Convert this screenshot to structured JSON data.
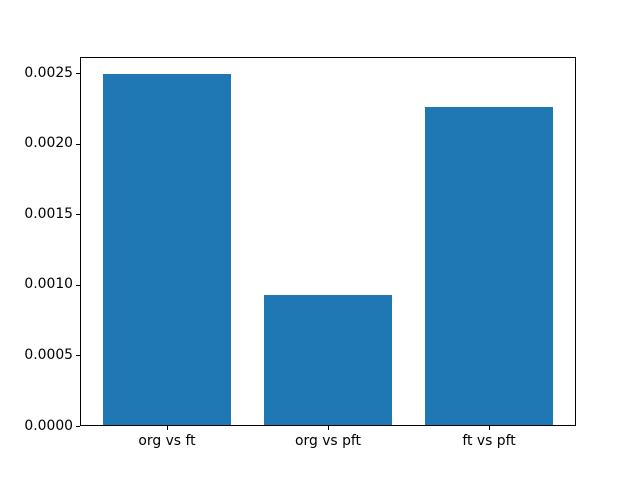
{
  "figure": {
    "background": "#ffffff",
    "title": ""
  },
  "chart_data": {
    "type": "bar",
    "title": "",
    "xlabel": "",
    "ylabel": "",
    "categories": [
      "org vs ft",
      "org vs pft",
      "ft vs pft"
    ],
    "values": [
      0.00249,
      0.00093,
      0.00226
    ],
    "bar_color": "#1f77b4",
    "bar_width": 0.8,
    "xlim": [
      -0.54,
      2.54
    ],
    "ylim": [
      0,
      0.00261
    ],
    "yticks": [
      {
        "value": 0.0,
        "label": "0.0000"
      },
      {
        "value": 0.0005,
        "label": "0.0005"
      },
      {
        "value": 0.001,
        "label": "0.0010"
      },
      {
        "value": 0.0015,
        "label": "0.0015"
      },
      {
        "value": 0.002,
        "label": "0.0020"
      },
      {
        "value": 0.0025,
        "label": "0.0025"
      }
    ],
    "grid": false,
    "legend": null,
    "spine_color": "#000000",
    "tick_color": "#000000"
  }
}
